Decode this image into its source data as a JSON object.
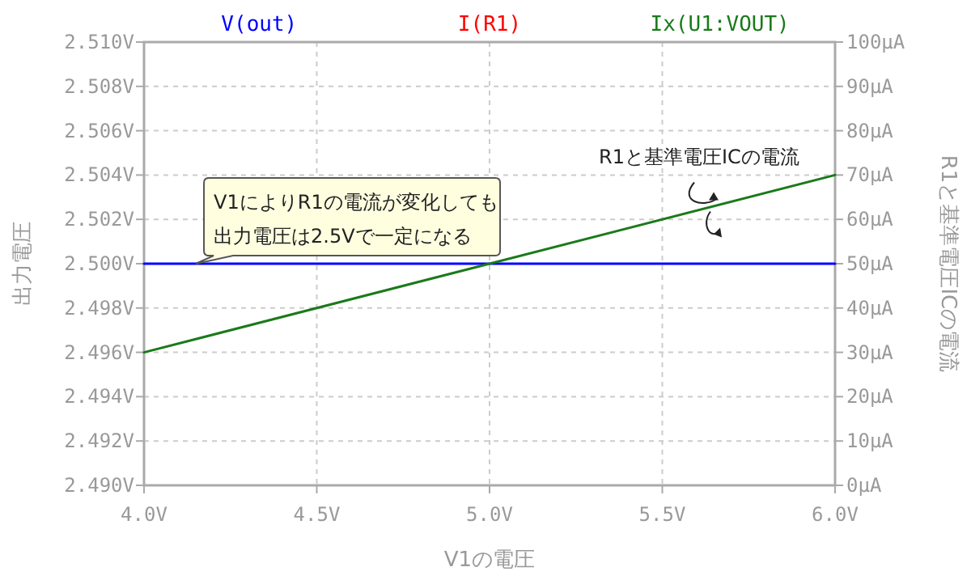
{
  "chart_data": {
    "type": "line",
    "xlabel": "V1の電圧",
    "ylabel": "出力電圧",
    "y2label": "R1と基準電圧ICの電流",
    "xlim": [
      4.0,
      6.0
    ],
    "x": [
      4.0,
      6.0
    ],
    "xticks": [
      {
        "value": 4.0,
        "label": "4.0V"
      },
      {
        "value": 4.5,
        "label": "4.5V"
      },
      {
        "value": 5.0,
        "label": "5.0V"
      },
      {
        "value": 5.5,
        "label": "5.5V"
      },
      {
        "value": 6.0,
        "label": "6.0V"
      }
    ],
    "ylim": [
      2.49,
      2.51
    ],
    "yticks": [
      {
        "value": 2.49,
        "label": "2.490V"
      },
      {
        "value": 2.492,
        "label": "2.492V"
      },
      {
        "value": 2.494,
        "label": "2.494V"
      },
      {
        "value": 2.496,
        "label": "2.496V"
      },
      {
        "value": 2.498,
        "label": "2.498V"
      },
      {
        "value": 2.5,
        "label": "2.500V"
      },
      {
        "value": 2.502,
        "label": "2.502V"
      },
      {
        "value": 2.504,
        "label": "2.504V"
      },
      {
        "value": 2.506,
        "label": "2.506V"
      },
      {
        "value": 2.508,
        "label": "2.508V"
      },
      {
        "value": 2.51,
        "label": "2.510V"
      }
    ],
    "y2lim": [
      0,
      100
    ],
    "y2ticks": [
      {
        "value": 0,
        "label": "0µA"
      },
      {
        "value": 10,
        "label": "10µA"
      },
      {
        "value": 20,
        "label": "20µA"
      },
      {
        "value": 30,
        "label": "30µA"
      },
      {
        "value": 40,
        "label": "40µA"
      },
      {
        "value": 50,
        "label": "50µA"
      },
      {
        "value": 60,
        "label": "60µA"
      },
      {
        "value": 70,
        "label": "70µA"
      },
      {
        "value": 80,
        "label": "80µA"
      },
      {
        "value": 90,
        "label": "90µA"
      },
      {
        "value": 100,
        "label": "100µA"
      }
    ],
    "grid": true,
    "legend": "top",
    "series": [
      {
        "name": "V(out)",
        "color": "#0000ff",
        "values": [
          2.5,
          2.5
        ]
      },
      {
        "name": "I(R1)",
        "color": "#ff0000",
        "axis": "y2",
        "values": [
          null,
          null
        ]
      },
      {
        "name": "Ix(U1:VOUT)",
        "color": "#1a7a1a",
        "axis": "y2",
        "values": [
          30,
          70
        ]
      }
    ],
    "annotations": [
      {
        "text": "V1によりR1の電流が変化しても",
        "x": 4.15,
        "y": 2.5
      },
      "出力電圧は2.5Vで一定になる",
      {
        "text": "R1と基準電圧ICの電流",
        "x": 5.63,
        "y": 2.5025
      }
    ]
  }
}
